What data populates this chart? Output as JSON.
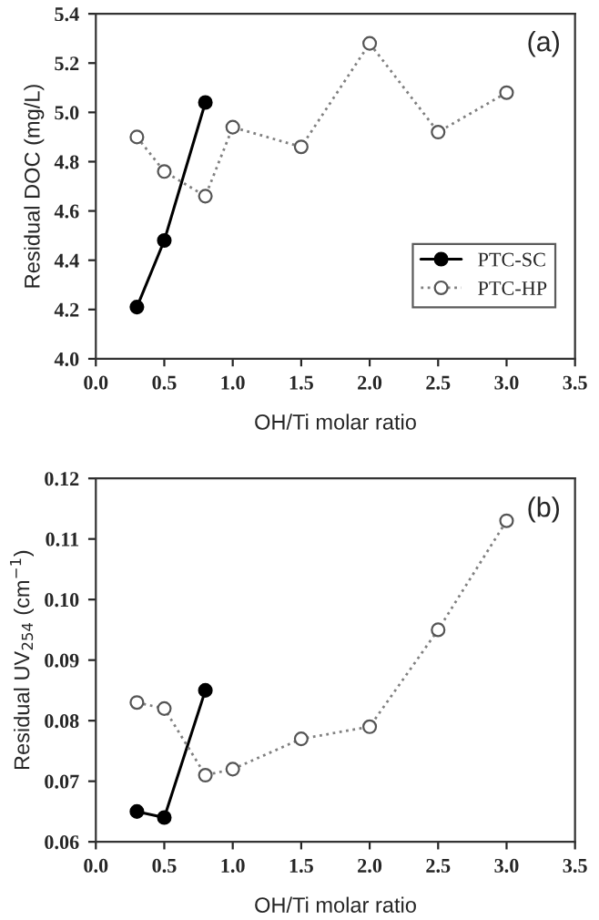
{
  "chart_data": [
    {
      "type": "line",
      "xlabel": "OH/Ti molar ratio",
      "ylabel": "Residual DOC (mg/L)",
      "annotations": [
        "(a)"
      ],
      "xlim": [
        0,
        3.5
      ],
      "xticks": [
        {
          "value": 0,
          "label": "0.0"
        },
        {
          "value": 0.5,
          "label": "0.5"
        },
        {
          "value": 1,
          "label": "1.0"
        },
        {
          "value": 1.5,
          "label": "1.5"
        },
        {
          "value": 2,
          "label": "2.0"
        },
        {
          "value": 2.5,
          "label": "2.5"
        },
        {
          "value": 3,
          "label": "3.0"
        },
        {
          "value": 3.5,
          "label": "3.5"
        }
      ],
      "ylim": [
        4.0,
        5.4
      ],
      "yticks": [
        {
          "value": 4.0,
          "label": "4.0"
        },
        {
          "value": 4.2,
          "label": "4.2"
        },
        {
          "value": 4.4,
          "label": "4.4"
        },
        {
          "value": 4.6,
          "label": "4.6"
        },
        {
          "value": 4.8,
          "label": "4.8"
        },
        {
          "value": 5.0,
          "label": "5.0"
        },
        {
          "value": 5.2,
          "label": "5.2"
        },
        {
          "value": 5.4,
          "label": "5.4"
        }
      ],
      "grid": false,
      "legend": "bottom right",
      "series": [
        {
          "name": "PTC-SC",
          "color": "#000000",
          "marker": "circle",
          "line_style": "solid",
          "x": [
            0.3,
            0.5,
            0.8
          ],
          "values": [
            4.21,
            4.48,
            5.04
          ]
        },
        {
          "name": "PTC-HP",
          "color": "#808080",
          "marker": "circle",
          "line_style": "dotted",
          "x": [
            0.3,
            0.5,
            0.8,
            1.0,
            1.5,
            2.0,
            2.5,
            3.0
          ],
          "values": [
            4.9,
            4.76,
            4.66,
            4.94,
            4.86,
            5.28,
            4.92,
            5.08
          ]
        }
      ]
    },
    {
      "type": "line",
      "xlabel": "OH/Ti molar ratio",
      "ylabel": "Residual UV$_{254}$ (cm$^{−1}$)",
      "annotations": [
        "(b)"
      ],
      "xlim": [
        0,
        3.5
      ],
      "xticks": [
        {
          "value": 0,
          "label": "0.0"
        },
        {
          "value": 0.5,
          "label": "0.5"
        },
        {
          "value": 1,
          "label": "1.0"
        },
        {
          "value": 1.5,
          "label": "1.5"
        },
        {
          "value": 2,
          "label": "2.0"
        },
        {
          "value": 2.5,
          "label": "2.5"
        },
        {
          "value": 3,
          "label": "3.0"
        },
        {
          "value": 3.5,
          "label": "3.5"
        }
      ],
      "ylim": [
        0.06,
        0.12
      ],
      "yticks": [
        {
          "value": 0.06,
          "label": "0.06"
        },
        {
          "value": 0.07,
          "label": "0.07"
        },
        {
          "value": 0.08,
          "label": "0.08"
        },
        {
          "value": 0.09,
          "label": "0.09"
        },
        {
          "value": 0.1,
          "label": "0.10"
        },
        {
          "value": 0.11,
          "label": "0.11"
        },
        {
          "value": 0.12,
          "label": "0.12"
        }
      ],
      "grid": false,
      "legend": false,
      "series": [
        {
          "color": "#000000",
          "marker": "circle",
          "line_style": "solid",
          "x": [
            0.3,
            0.5,
            0.8
          ],
          "values": [
            0.065,
            0.064,
            0.085
          ]
        },
        {
          "color": "#808080",
          "marker": "circle",
          "line_style": "dotted",
          "x": [
            0.3,
            0.5,
            0.8,
            1.0,
            1.5,
            2.0,
            2.5,
            3.0
          ],
          "values": [
            0.083,
            0.082,
            0.071,
            0.072,
            0.077,
            0.079,
            0.095,
            0.113
          ]
        }
      ]
    }
  ]
}
